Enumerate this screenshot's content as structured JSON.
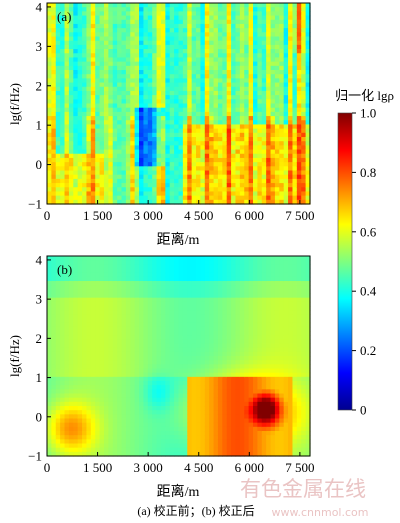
{
  "chart_data": [
    {
      "type": "heatmap",
      "panel_label": "(a)",
      "xlabel": "距离/m",
      "ylabel": "lg(f/Hz)",
      "xlim": [
        0,
        7800
      ],
      "ylim": [
        -1,
        4.1
      ],
      "xticks": [
        0,
        1500,
        3000,
        4500,
        6000,
        7500
      ],
      "xtick_labels": [
        "0",
        "1 500",
        "3 000",
        "4 500",
        "6 000",
        "7 500"
      ],
      "yticks": [
        -1,
        0,
        1,
        2,
        3,
        4
      ],
      "ytick_labels": [
        "−1",
        "0",
        "1",
        "2",
        "3",
        "4"
      ],
      "value_description": "normalized lgρ, blue-green background with vertical orange/red streaks",
      "low_freq_regions": [
        {
          "x_range": [
            300,
            1700
          ],
          "lgf_range": [
            -1,
            0.3
          ],
          "value": 0.78
        },
        {
          "x_range": [
            4000,
            7800
          ],
          "lgf_range": [
            -1,
            1.0
          ],
          "value": 0.8
        }
      ],
      "vertical_streaks_x": [
        150,
        650,
        1300,
        1900,
        2500,
        3400,
        4200,
        4800,
        5400,
        6000,
        6600,
        7200,
        7450,
        7600
      ]
    },
    {
      "type": "heatmap",
      "panel_label": "(b)",
      "xlabel": "距离/m",
      "ylabel": "lg(f/Hz)",
      "xlim": [
        0,
        7800
      ],
      "ylim": [
        -1,
        4.1
      ],
      "xticks": [
        0,
        1500,
        3000,
        4500,
        6000,
        7500
      ],
      "xtick_labels": [
        "0",
        "1 500",
        "3 000",
        "4 500",
        "6 000",
        "7 500"
      ],
      "yticks": [
        -1,
        0,
        1,
        2,
        3,
        4
      ],
      "ytick_labels": [
        "−1",
        "0",
        "1",
        "2",
        "3",
        "4"
      ],
      "value_description": "smoothed: cyan-green background with warm low-frequency anomalies",
      "anomalies": [
        {
          "x_center": 700,
          "lgf_center": -0.3,
          "x_span": 1600,
          "lgf_span": 1.4,
          "value": 0.72
        },
        {
          "x_center": 5900,
          "lgf_center": 0.1,
          "x_span": 3400,
          "lgf_span": 1.8,
          "value": 0.8
        },
        {
          "x_center": 6500,
          "lgf_center": 0.2,
          "x_span": 800,
          "lgf_span": 0.8,
          "value": 0.86
        },
        {
          "x_center": 3300,
          "lgf_center": 0.6,
          "x_span": 900,
          "lgf_span": 1.0,
          "value": 0.42
        }
      ]
    }
  ],
  "colorbar": {
    "title": "归一化 lgρ",
    "min": 0,
    "max": 1.0,
    "ticks": [
      0,
      0.2,
      0.4,
      0.6,
      0.8,
      1.0
    ],
    "tick_labels": [
      "0",
      "0.2",
      "0.4",
      "0.6",
      "0.8",
      "1.0"
    ],
    "colormap": "jet"
  },
  "caption": "(a)  校正前；(b)  校正后",
  "watermark": {
    "cn": "有色金属在线",
    "url": "www.cnnmol.com"
  }
}
